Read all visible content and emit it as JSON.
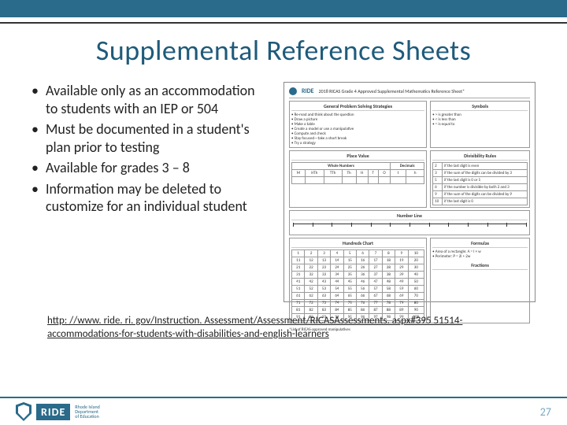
{
  "colors": {
    "brand": "#2a6a8a",
    "title": "#1f5a7a",
    "text": "#222222",
    "border": "#999999",
    "page_num": "#7aa8c2",
    "background": "#ffffff"
  },
  "title": "Supplemental Reference Sheets",
  "bullets": [
    "Available only as an accommodation to students with an IEP or 504",
    "Must be documented in a student's plan prior to testing",
    "Available for grades 3 – 8",
    "Information may be deleted to customize for an individual student"
  ],
  "link": "http: //www. ride. ri. gov/Instruction. Assessment/Assessment/RICASAssessments. aspx#395 51514-accommodations-for-students-with-disabilities-and-english-learners",
  "page_number": "27",
  "footer": {
    "brand": "RIDE",
    "subtitle_lines": [
      "Rhode Island",
      "Department",
      "of Education"
    ]
  },
  "figure": {
    "header_brand": "RIDE",
    "header_title": "2018 RICAS Grade 4 Approved Supplemental Mathematics Reference Sheet*",
    "sections": {
      "strategies_title": "General Problem Solving Strategies",
      "strategies": [
        "Re-read and think about the question",
        "Draw a picture",
        "Make a table",
        "Create a model or use a manipulative",
        "Compute and check",
        "Stay focused—take a short break",
        "Try a strategy"
      ],
      "symbols_title": "Symbols",
      "symbols": [
        "> is greater than",
        "< is less than",
        "= is equal to"
      ],
      "place_value_title": "Place Value",
      "place_value": {
        "whole_label": "Whole Numbers",
        "decimal_label": "Decimals",
        "whole_cols": [
          "M",
          "HTh",
          "TTh",
          "Th",
          "H",
          "T",
          "O"
        ],
        "decimal_cols": [
          "t",
          "h"
        ]
      },
      "divisibility_title": "Divisibility Rules",
      "divisibility": [
        [
          "2",
          "if the last digit is even"
        ],
        [
          "3",
          "if the sum of the digits can be divided by 3"
        ],
        [
          "5",
          "if the last digit is 0 or 5"
        ],
        [
          "6",
          "if the number is divisible by both 2 and 3"
        ],
        [
          "9",
          "if the sum of the digits can be divided by 9"
        ],
        [
          "10",
          "if the last digit is 0"
        ]
      ],
      "number_line_title": "Number Line",
      "hundreds_chart_title": "Hundreds Chart",
      "hundreds_chart_rows": [
        [
          1,
          2,
          3,
          4,
          5,
          6,
          7,
          8,
          9,
          10
        ],
        [
          11,
          12,
          13,
          14,
          15,
          16,
          17,
          18,
          19,
          20
        ],
        [
          21,
          22,
          23,
          24,
          25,
          26,
          27,
          28,
          29,
          30
        ],
        [
          31,
          32,
          33,
          34,
          35,
          36,
          37,
          38,
          39,
          40
        ],
        [
          41,
          42,
          43,
          44,
          45,
          46,
          47,
          48,
          49,
          50
        ],
        [
          51,
          52,
          53,
          54,
          55,
          56,
          57,
          58,
          59,
          60
        ],
        [
          61,
          62,
          63,
          64,
          65,
          66,
          67,
          68,
          69,
          70
        ],
        [
          71,
          72,
          73,
          74,
          75,
          76,
          77,
          78,
          79,
          80
        ],
        [
          81,
          82,
          83,
          84,
          85,
          86,
          87,
          88,
          89,
          90
        ],
        [
          91,
          92,
          93,
          94,
          95,
          96,
          97,
          98,
          99,
          100
        ]
      ],
      "formulas_title": "Formulas",
      "formulas": [
        "Area of a rectangle: A = l × w",
        "Perimeter: P = 2l + 2w"
      ],
      "fractions_title": "Fractions",
      "footer_note": "*List of RICAS-approved manipulatives"
    }
  }
}
